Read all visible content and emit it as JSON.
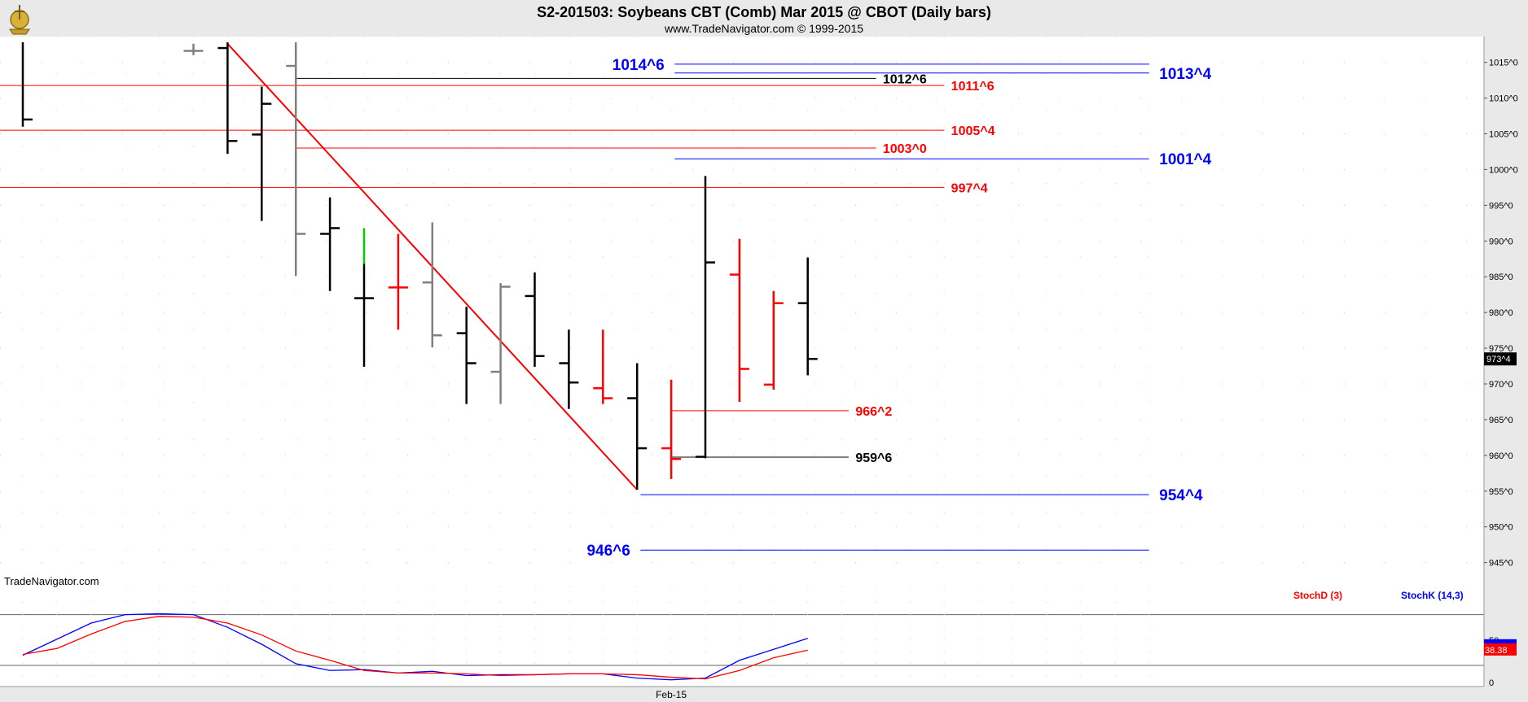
{
  "header": {
    "title": "S2-201503:  Soybeans CBT (Comb) Mar 2015 @ CBOT  (Daily bars)",
    "subtitle": "www.TradeNavigator.com © 1999-2015"
  },
  "watermark": "TradeNavigator.com",
  "colors": {
    "up_bar": "#000000",
    "down_bar": "#ff0000",
    "neutral_bar": "#808080",
    "highlight_bar": "#00cc00",
    "blue_level": "#0000ff",
    "red_level": "#ff0000",
    "black_level": "#000000",
    "trendline": "#ff0000"
  },
  "chart_data": [
    {
      "type": "ohlc",
      "title": "S2-201503:  Soybeans CBT (Comb) Mar 2015 @ CBOT  (Daily bars)",
      "ylim": [
        941.2,
        1018.6
      ],
      "yticks": [
        {
          "value": 1015,
          "label": "1015^0"
        },
        {
          "value": 1010,
          "label": "1010^0"
        },
        {
          "value": 1005,
          "label": "1005^0"
        },
        {
          "value": 1000,
          "label": "1000^0"
        },
        {
          "value": 995,
          "label": "995^0"
        },
        {
          "value": 990,
          "label": "990^0"
        },
        {
          "value": 985,
          "label": "985^0"
        },
        {
          "value": 980,
          "label": "980^0"
        },
        {
          "value": 975,
          "label": "975^0"
        },
        {
          "value": 970,
          "label": "970^0"
        },
        {
          "value": 965,
          "label": "965^0"
        },
        {
          "value": 960,
          "label": "960^0"
        },
        {
          "value": 955,
          "label": "955^0"
        },
        {
          "value": 950,
          "label": "950^0"
        },
        {
          "value": 945,
          "label": "945^0"
        }
      ],
      "last_price": {
        "value": 973.5,
        "label": "973^4"
      },
      "x_labels": [
        {
          "index": 19,
          "label": "Feb-15"
        }
      ],
      "bars": [
        {
          "i": 0,
          "open": null,
          "high": 1017.8,
          "low": 1006.0,
          "close": 1007.0,
          "color": "black"
        },
        {
          "i": 5,
          "open": 1016.6,
          "high": 1017.6,
          "low": 1016.0,
          "close": 1016.6,
          "color": "gray"
        },
        {
          "i": 6,
          "open": 1017.0,
          "high": 1017.8,
          "low": 1002.2,
          "close": 1004.0,
          "color": "black"
        },
        {
          "i": 7,
          "open": 1004.9,
          "high": 1011.6,
          "low": 992.8,
          "close": 1009.2,
          "color": "black"
        },
        {
          "i": 8,
          "open": 1014.5,
          "high": 1017.8,
          "low": 985.1,
          "close": 991.0,
          "color": "gray"
        },
        {
          "i": 9,
          "open": 991.0,
          "high": 996.1,
          "low": 983.0,
          "close": 991.8,
          "color": "black"
        },
        {
          "i": 10,
          "open": 982.0,
          "high": 991.8,
          "low": 972.4,
          "close": 982.0,
          "color": "black",
          "top_color": "green",
          "top_split": 986.8
        },
        {
          "i": 11,
          "open": 983.5,
          "high": 991.0,
          "low": 977.6,
          "close": 983.5,
          "color": "red"
        },
        {
          "i": 12,
          "open": 984.2,
          "high": 992.6,
          "low": 975.1,
          "close": 976.8,
          "color": "gray"
        },
        {
          "i": 13,
          "open": 977.1,
          "high": 980.8,
          "low": 967.2,
          "close": 972.9,
          "color": "black"
        },
        {
          "i": 14,
          "open": 971.7,
          "high": 984.1,
          "low": 967.2,
          "close": 983.6,
          "color": "gray"
        },
        {
          "i": 15,
          "open": 982.3,
          "high": 985.6,
          "low": 972.4,
          "close": 973.9,
          "color": "black"
        },
        {
          "i": 16,
          "open": 972.9,
          "high": 977.6,
          "low": 966.5,
          "close": 970.2,
          "color": "black"
        },
        {
          "i": 17,
          "open": 969.4,
          "high": 977.6,
          "low": 967.2,
          "close": 968.0,
          "color": "red"
        },
        {
          "i": 18,
          "open": 968.0,
          "high": 972.9,
          "low": 955.2,
          "close": 961.0,
          "color": "black"
        },
        {
          "i": 19,
          "open": 961.0,
          "high": 970.6,
          "low": 956.7,
          "close": 959.5,
          "color": "red"
        },
        {
          "i": 20,
          "open": 959.8,
          "high": 999.1,
          "low": 959.6,
          "close": 987.0,
          "color": "black"
        },
        {
          "i": 21,
          "open": 985.3,
          "high": 990.3,
          "low": 967.5,
          "close": 972.1,
          "color": "red"
        },
        {
          "i": 22,
          "open": 969.9,
          "high": 983.0,
          "low": 969.2,
          "close": 981.3,
          "color": "red"
        },
        {
          "i": 23,
          "open": 981.3,
          "high": 987.7,
          "low": 971.2,
          "close": 973.5,
          "color": "black"
        }
      ],
      "levels": [
        {
          "price": 1014.75,
          "label": "1014^6",
          "color": "blue",
          "from": 19.1,
          "to": 33.0,
          "label_side": "left",
          "label_at": 18.8
        },
        {
          "price": 1013.5,
          "label": "1013^4",
          "color": "blue",
          "from": 19.1,
          "to": 33.0,
          "label_side": "right",
          "label_at": 33.3
        },
        {
          "price": 1012.75,
          "label": "1012^6",
          "color": "black",
          "from": 8.0,
          "to": 25.0,
          "label_side": "right",
          "label_at": 25.2
        },
        {
          "price": 1011.75,
          "label": "1011^6",
          "color": "red",
          "from": -0.6,
          "to": 27.0,
          "label_side": "right",
          "label_at": 27.2
        },
        {
          "price": 1005.5,
          "label": "1005^4",
          "color": "red",
          "from": -0.6,
          "to": 27.0,
          "label_side": "right",
          "label_at": 27.2
        },
        {
          "price": 1003.0,
          "label": "1003^0",
          "color": "red",
          "from": 8.0,
          "to": 25.0,
          "label_side": "right",
          "label_at": 25.2
        },
        {
          "price": 1001.5,
          "label": "1001^4",
          "color": "blue",
          "from": 19.1,
          "to": 33.0,
          "label_side": "right",
          "label_at": 33.3
        },
        {
          "price": 997.5,
          "label": "997^4",
          "color": "red",
          "from": -0.6,
          "to": 27.0,
          "label_side": "right",
          "label_at": 27.2
        },
        {
          "price": 966.25,
          "label": "966^2",
          "color": "red",
          "from": 19.0,
          "to": 24.2,
          "label_side": "right",
          "label_at": 24.4
        },
        {
          "price": 959.75,
          "label": "959^6",
          "color": "black",
          "from": 19.0,
          "to": 24.2,
          "label_side": "right",
          "label_at": 24.4
        },
        {
          "price": 954.5,
          "label": "954^4",
          "color": "blue",
          "from": 18.1,
          "to": 33.0,
          "label_side": "right",
          "label_at": 33.3
        },
        {
          "price": 946.75,
          "label": "946^6",
          "color": "blue",
          "from": 18.1,
          "to": 33.0,
          "label_side": "left",
          "label_at": 17.8
        }
      ],
      "trendline": {
        "from": {
          "i": 6,
          "price": 1017.6
        },
        "to": {
          "i": 18,
          "price": 955.2
        },
        "color": "red"
      }
    },
    {
      "type": "line",
      "indicator": "Stochastic",
      "ylim": [
        -5,
        95
      ],
      "yticks": [
        {
          "value": 0,
          "label": "0"
        },
        {
          "value": 50,
          "label": "50"
        }
      ],
      "reference_lines": [
        20,
        80
      ],
      "legend": [
        {
          "name": "StochD (3)",
          "color": "#ff0000"
        },
        {
          "name": "StochK (14,3)",
          "color": "#0000ff"
        }
      ],
      "last_values": [
        {
          "value": 38.38,
          "label": "38.38",
          "color": "#ff0000"
        }
      ],
      "series": [
        {
          "name": "StochK (14,3)",
          "color": "#0000ff",
          "points": [
            [
              0,
              32
            ],
            [
              2,
              70
            ],
            [
              3,
              80
            ],
            [
              4,
              81
            ],
            [
              5,
              80
            ],
            [
              6,
              65
            ],
            [
              7,
              45
            ],
            [
              8,
              22
            ],
            [
              9,
              14
            ],
            [
              10,
              15
            ],
            [
              11,
              11
            ],
            [
              12,
              13
            ],
            [
              13,
              8
            ],
            [
              14,
              9
            ],
            [
              15,
              9
            ],
            [
              16,
              10
            ],
            [
              17,
              10
            ],
            [
              18,
              5
            ],
            [
              19,
              3
            ],
            [
              20,
              5
            ],
            [
              21,
              26
            ],
            [
              22,
              39
            ],
            [
              23,
              52
            ]
          ]
        },
        {
          "name": "StochD (3)",
          "color": "#ff0000",
          "points": [
            [
              0,
              33
            ],
            [
              1,
              40
            ],
            [
              2,
              57
            ],
            [
              3,
              72
            ],
            [
              4,
              78
            ],
            [
              5,
              77
            ],
            [
              6,
              70
            ],
            [
              7,
              56
            ],
            [
              8,
              37
            ],
            [
              9,
              26
            ],
            [
              10,
              14
            ],
            [
              11,
              11
            ],
            [
              12,
              11
            ],
            [
              13,
              10
            ],
            [
              14,
              8
            ],
            [
              15,
              9
            ],
            [
              16,
              10
            ],
            [
              17,
              10
            ],
            [
              18,
              9
            ],
            [
              19,
              6
            ],
            [
              20,
              4
            ],
            [
              21,
              14
            ],
            [
              22,
              29
            ],
            [
              23,
              38
            ]
          ]
        }
      ]
    }
  ]
}
